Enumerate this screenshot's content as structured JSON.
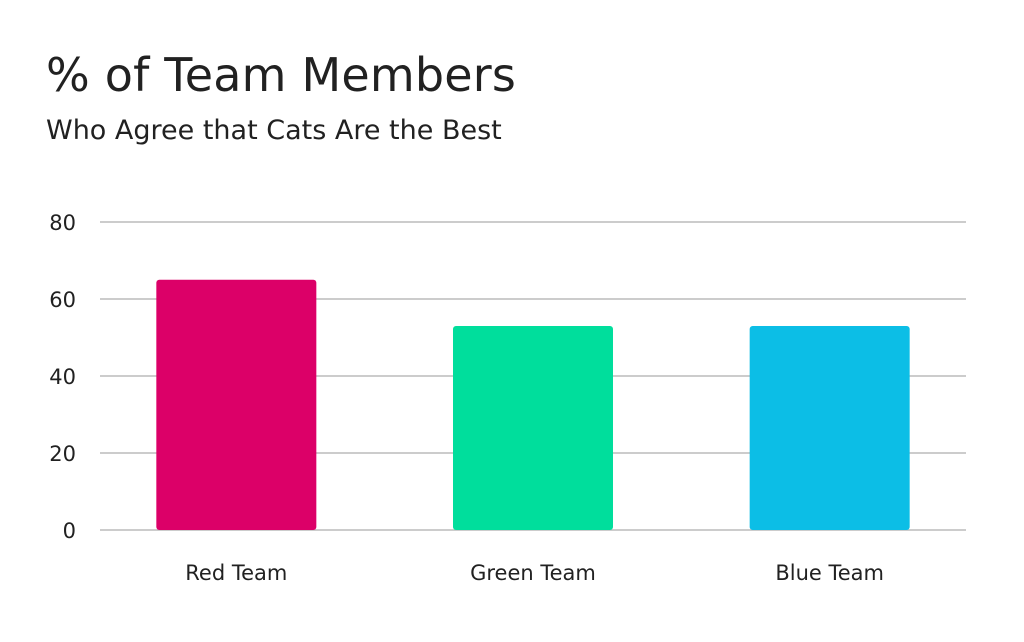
{
  "chart_data": {
    "type": "bar",
    "title": "% of Team Members",
    "subtitle": "Who Agree that Cats Are the Best",
    "categories": [
      "Red Team",
      "Green Team",
      "Blue Team"
    ],
    "values": [
      65,
      53,
      53
    ],
    "colors": [
      "#dc0068",
      "#00de9c",
      "#0cbee6"
    ],
    "ylim": [
      0,
      80
    ],
    "yticks": [
      0,
      20,
      40,
      60,
      80
    ],
    "grid": true,
    "xlabel": "",
    "ylabel": ""
  }
}
